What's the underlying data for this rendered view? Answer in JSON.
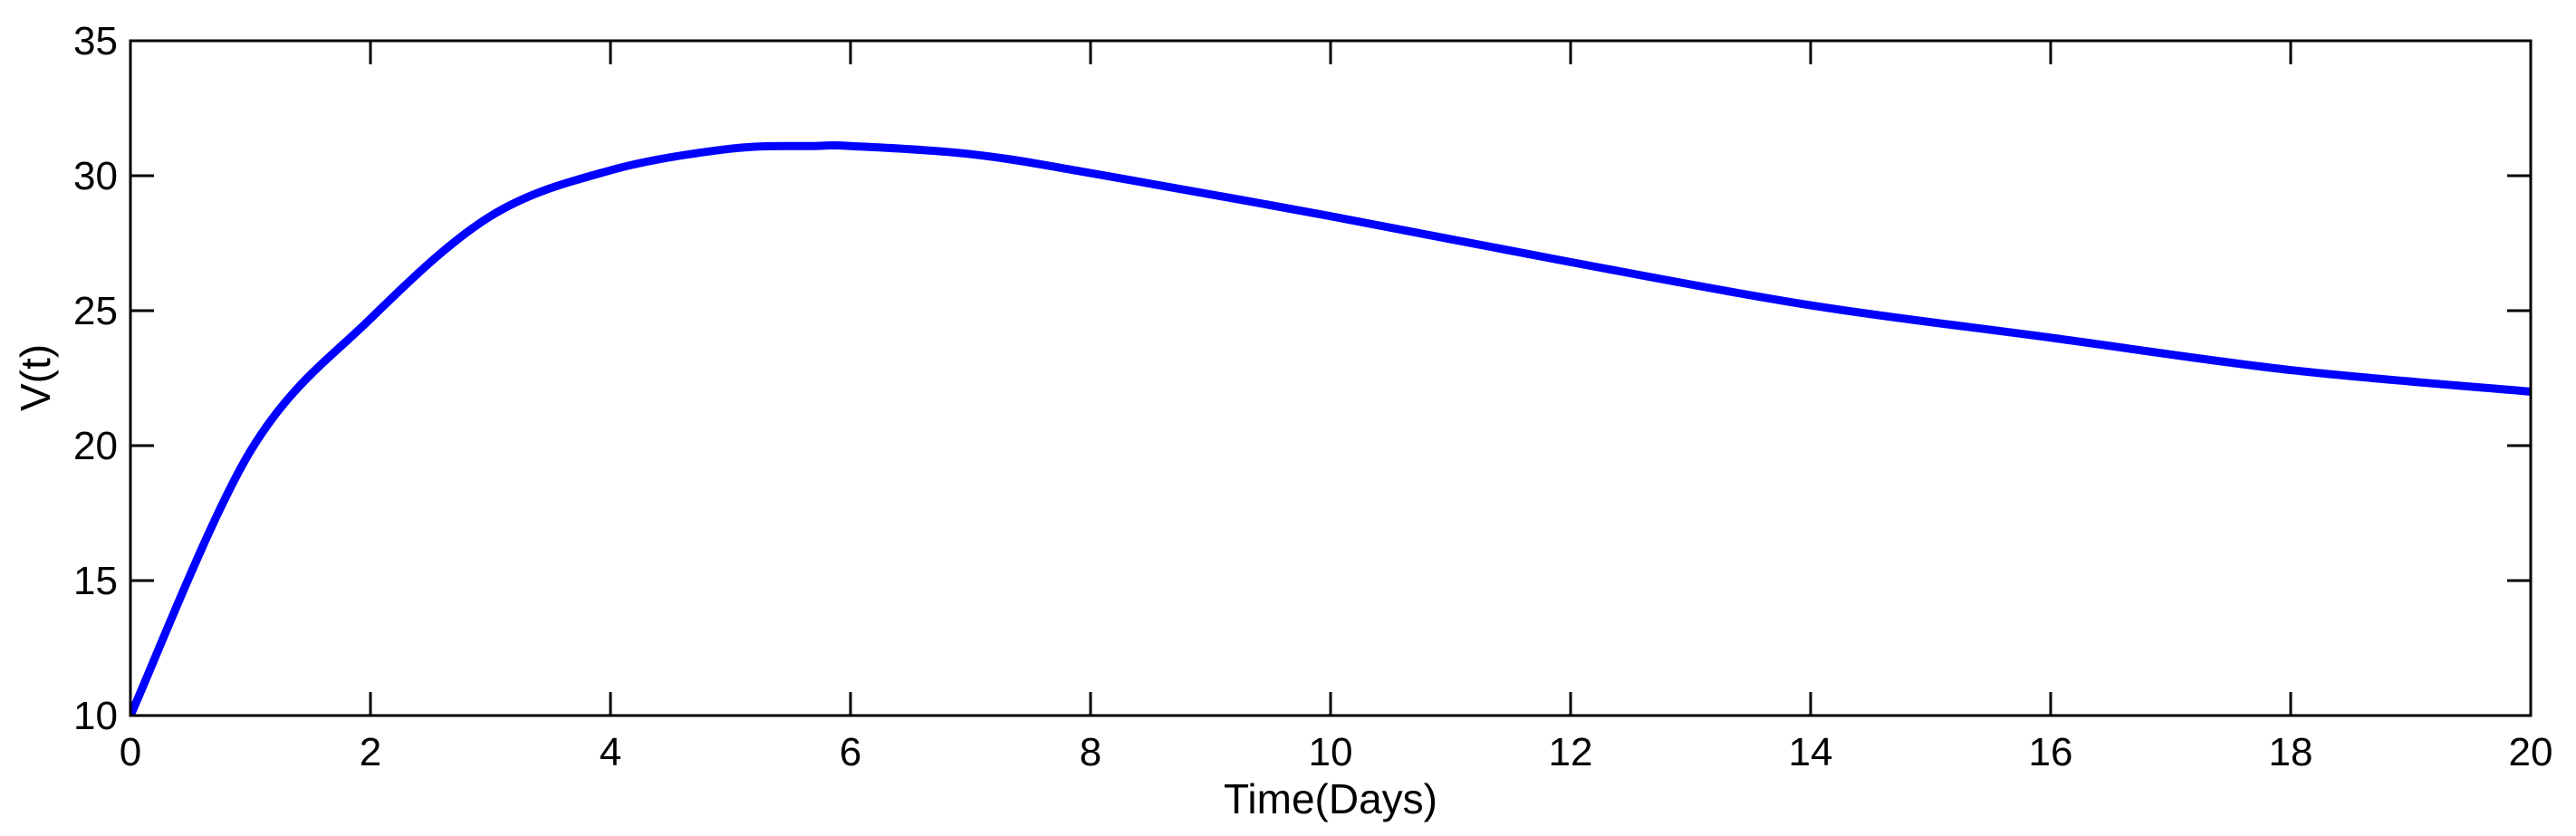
{
  "chart_data": {
    "type": "line",
    "title": "",
    "xlabel": "Time(Days)",
    "ylabel": "V(t)",
    "xlim": [
      0,
      20
    ],
    "ylim": [
      10,
      35
    ],
    "xticks": [
      0,
      2,
      4,
      6,
      8,
      10,
      12,
      14,
      16,
      18,
      20
    ],
    "yticks": [
      10,
      15,
      20,
      25,
      30,
      35
    ],
    "grid": false,
    "legend": false,
    "background_color": "#ffffff",
    "axis_color": "#000000",
    "series": [
      {
        "name": "V(t)",
        "color": "#0000ff",
        "linewidth": 9,
        "x": [
          0,
          1,
          2,
          3,
          4,
          5,
          5.7,
          6,
          7,
          8,
          10,
          12,
          14,
          16,
          18,
          20
        ],
        "y": [
          10.0,
          19.8,
          24.7,
          28.5,
          30.2,
          31.0,
          31.1,
          31.1,
          30.8,
          30.1,
          28.5,
          26.8,
          25.2,
          24.0,
          22.8,
          22.0
        ]
      }
    ]
  }
}
